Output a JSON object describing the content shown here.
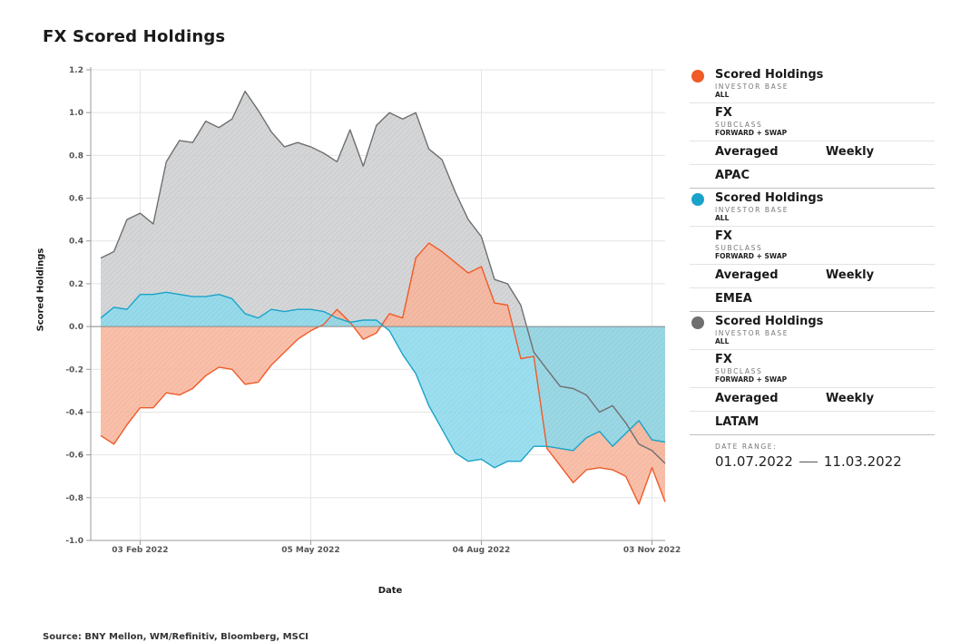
{
  "page": {
    "title": "FX Scored Holdings",
    "source": "Source: BNY Mellon, WM/Refinitiv, Bloomberg, MSCI"
  },
  "legend": {
    "entries": [
      {
        "name": "Scored Holdings",
        "sub1_label": "INVESTOR BASE",
        "sub1_value": "ALL",
        "asset": "FX",
        "sub2_label": "SUBCLASS",
        "sub2_value": "FORWARD + SWAP",
        "method": "Averaged",
        "freq": "Weekly",
        "region": "APAC",
        "color": "#f05a28"
      },
      {
        "name": "Scored Holdings",
        "sub1_label": "INVESTOR BASE",
        "sub1_value": "ALL",
        "asset": "FX",
        "sub2_label": "SUBCLASS",
        "sub2_value": "FORWARD + SWAP",
        "method": "Averaged",
        "freq": "Weekly",
        "region": "EMEA",
        "color": "#1aa3c8"
      },
      {
        "name": "Scored Holdings",
        "sub1_label": "INVESTOR BASE",
        "sub1_value": "ALL",
        "asset": "FX",
        "sub2_label": "SUBCLASS",
        "sub2_value": "FORWARD + SWAP",
        "method": "Averaged",
        "freq": "Weekly",
        "region": "LATAM",
        "color": "#6f6f6f"
      }
    ],
    "date_range_label": "DATE RANGE:",
    "date_from": "01.07.2022",
    "date_to": "11.03.2022"
  },
  "chart_data": {
    "type": "area",
    "title": "FX Scored Holdings",
    "xlabel": "Date",
    "ylabel": "Scored Holdings",
    "ylim": [
      -1.0,
      1.2
    ],
    "yticks": [
      -1.0,
      -0.8,
      -0.6,
      -0.4,
      -0.2,
      0.0,
      0.2,
      0.4,
      0.6,
      0.8,
      1.0,
      1.2
    ],
    "ytick_labels": [
      "-1.0",
      "-0.8",
      "-0.6",
      "-0.4",
      "-0.2",
      "0.0",
      "0.2",
      "0.4",
      "0.6",
      "0.8",
      "1.0",
      "1.2"
    ],
    "xlim_weeks": [
      0,
      44
    ],
    "xticks": [
      {
        "week": 3,
        "label": "03 Feb 2022"
      },
      {
        "week": 16,
        "label": "05 May 2022"
      },
      {
        "week": 29,
        "label": "04 Aug 2022"
      },
      {
        "week": 42,
        "label": "03 Nov 2022"
      }
    ],
    "series": [
      {
        "name": "APAC",
        "color": "#f05a28",
        "values": [
          -0.51,
          -0.55,
          -0.46,
          -0.38,
          -0.38,
          -0.31,
          -0.32,
          -0.29,
          -0.23,
          -0.19,
          -0.2,
          -0.27,
          -0.26,
          -0.18,
          -0.12,
          -0.06,
          -0.02,
          0.01,
          0.08,
          0.02,
          -0.06,
          -0.03,
          0.06,
          0.04,
          0.32,
          0.39,
          0.35,
          0.3,
          0.25,
          0.28,
          0.11,
          0.1,
          -0.15,
          -0.14,
          -0.57,
          -0.65,
          -0.73,
          -0.67,
          -0.66,
          -0.67,
          -0.7,
          -0.83,
          -0.66,
          -0.82
        ]
      },
      {
        "name": "EMEA",
        "color": "#1aa3c8",
        "values": [
          0.04,
          0.09,
          0.08,
          0.15,
          0.15,
          0.16,
          0.15,
          0.14,
          0.14,
          0.15,
          0.13,
          0.06,
          0.04,
          0.08,
          0.07,
          0.08,
          0.08,
          0.07,
          0.04,
          0.02,
          0.03,
          0.03,
          -0.02,
          -0.13,
          -0.22,
          -0.37,
          -0.48,
          -0.59,
          -0.63,
          -0.62,
          -0.66,
          -0.63,
          -0.63,
          -0.56,
          -0.56,
          -0.57,
          -0.58,
          -0.52,
          -0.49,
          -0.56,
          -0.5,
          -0.44,
          -0.53,
          -0.54
        ]
      },
      {
        "name": "LATAM",
        "color": "#6f6f6f",
        "values": [
          0.32,
          0.35,
          0.5,
          0.53,
          0.48,
          0.77,
          0.87,
          0.86,
          0.96,
          0.93,
          0.97,
          1.1,
          1.01,
          0.91,
          0.84,
          0.86,
          0.84,
          0.81,
          0.77,
          0.92,
          0.75,
          0.94,
          1.0,
          0.97,
          1.0,
          0.83,
          0.78,
          0.63,
          0.5,
          0.42,
          0.22,
          0.2,
          0.1,
          -0.12,
          -0.2,
          -0.28,
          -0.29,
          -0.32,
          -0.4,
          -0.37,
          -0.45,
          -0.55,
          -0.58,
          -0.64
        ]
      }
    ]
  }
}
